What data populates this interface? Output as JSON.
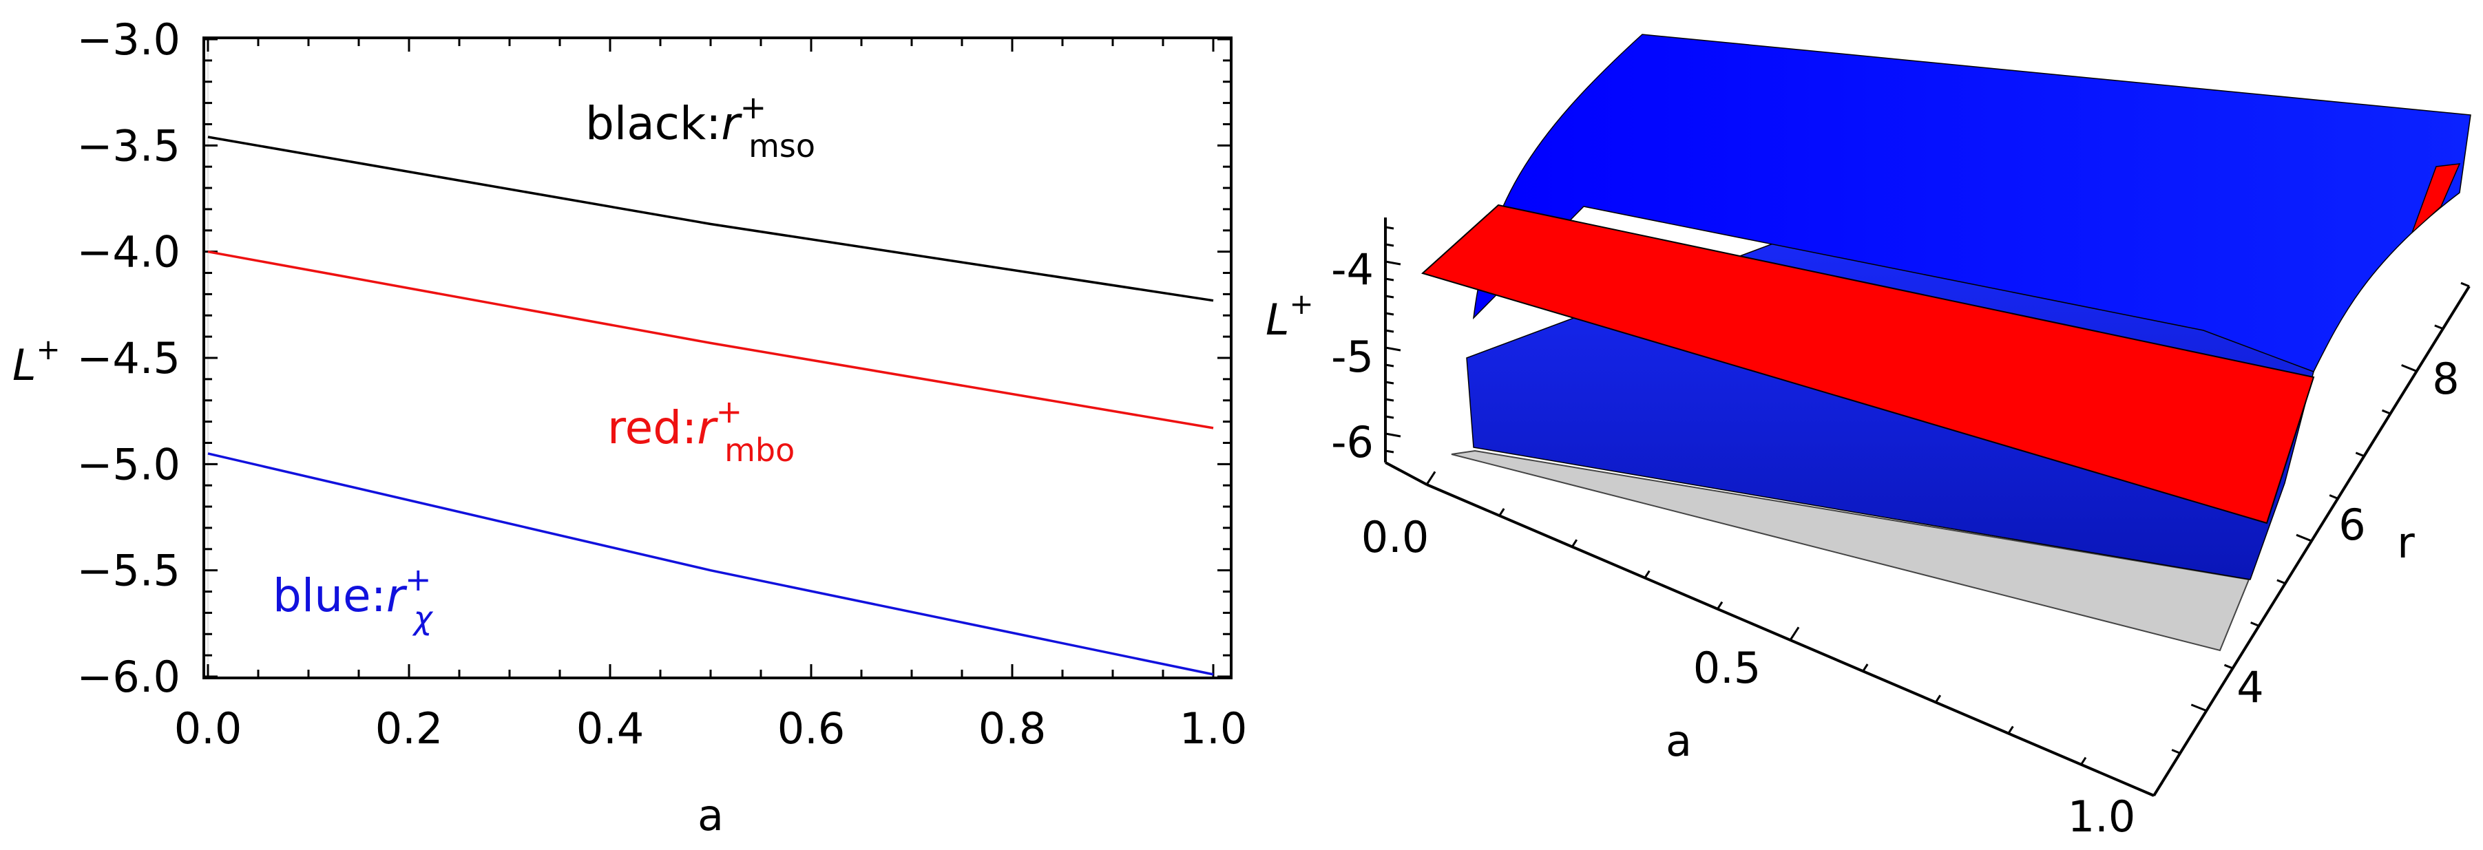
{
  "chart_data": [
    {
      "type": "line",
      "xlabel": "a",
      "ylabel": "L",
      "ylabel_sup": "+",
      "xlim": [
        0.0,
        1.0
      ],
      "ylim": [
        -6.0,
        -3.0
      ],
      "x_ticks": [
        "0.0",
        "0.2",
        "0.4",
        "0.6",
        "0.8",
        "1.0"
      ],
      "y_ticks": [
        "-3.0",
        "-3.5",
        "-4.0",
        "-4.5",
        "-5.0",
        "-5.5",
        "-6.0"
      ],
      "series": [
        {
          "color": "#000000",
          "x": [
            0.0,
            0.5,
            1.0
          ],
          "values": [
            -3.46,
            -3.87,
            -4.23
          ]
        },
        {
          "color": "#ee1111",
          "x": [
            0.0,
            0.5,
            1.0
          ],
          "values": [
            -4.0,
            -4.43,
            -4.83
          ]
        },
        {
          "color": "#1111dd",
          "x": [
            0.0,
            0.5,
            1.0
          ],
          "values": [
            -4.95,
            -5.5,
            -5.99
          ]
        }
      ],
      "annotations": [
        {
          "prefix": "black:",
          "sym": "r",
          "sup": "+",
          "sub": "mso",
          "color": "#000000"
        },
        {
          "prefix": "red:",
          "sym": "r",
          "sup": "+",
          "sub": "mbo",
          "color": "#ee1111"
        },
        {
          "prefix": "blue:",
          "sym": "r",
          "sup": "+",
          "sub": "χ",
          "color": "#1111dd"
        }
      ]
    },
    {
      "type": "surface3d",
      "xlabel": "a",
      "ylabel": "r",
      "zlabel": "L",
      "zlabel_sup": "+",
      "a_ticks": [
        "0.0",
        "0.5",
        "1.0"
      ],
      "r_ticks": [
        "4",
        "6",
        "8"
      ],
      "z_ticks": [
        "-4",
        "-5",
        "-6"
      ],
      "surfaces": [
        {
          "color": "#0000ff"
        },
        {
          "color": "#ff0000"
        },
        {
          "color": "#cccccc"
        }
      ]
    }
  ]
}
